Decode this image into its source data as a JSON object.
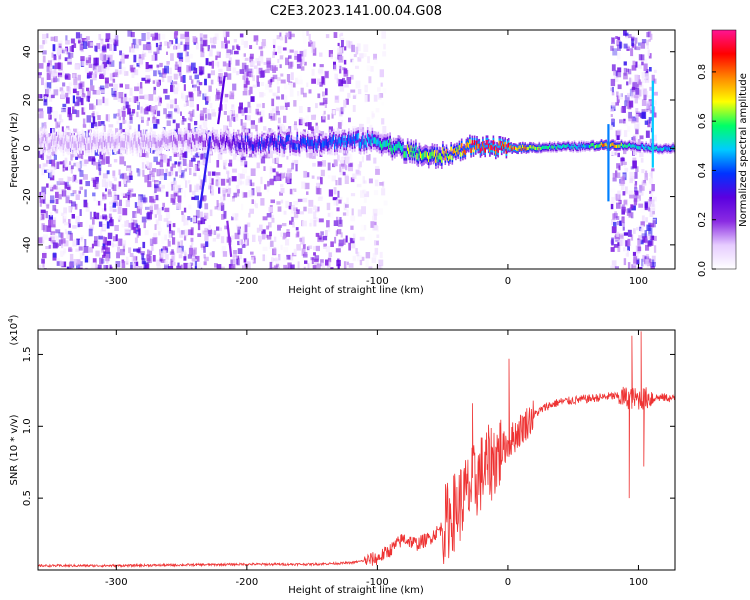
{
  "chart_data": [
    {
      "type": "heatmap",
      "title": "C2E3.2023.141.00.04.G08",
      "xlabel": "Height of straight line (km)",
      "ylabel": "Frequency (Hz)",
      "xlim": [
        -360,
        128
      ],
      "ylim": [
        -50,
        49
      ],
      "xticks": [
        -300,
        -200,
        -100,
        0,
        100
      ],
      "yticks": [
        -40,
        -20,
        0,
        20,
        40
      ],
      "grid": false,
      "colorbar": {
        "label": "Normalized spectral amplitude",
        "range": [
          0.0,
          0.97
        ],
        "ticks": [
          0.0,
          0.2,
          0.4,
          0.6,
          0.8
        ],
        "colormap": [
          "#ffffff",
          "#e6ccff",
          "#8a2be2",
          "#5a00e0",
          "#0033ff",
          "#00ccff",
          "#00ff66",
          "#ffff00",
          "#ff8800",
          "#ff0000",
          "#ff1493"
        ]
      },
      "ridge": [
        {
          "x": -280,
          "f": 2.5,
          "amp": 0.12
        },
        {
          "x": -230,
          "f": 3.0,
          "amp": 0.2
        },
        {
          "x": -200,
          "f": 2.0,
          "amp": 0.35
        },
        {
          "x": -150,
          "f": 2.5,
          "amp": 0.38
        },
        {
          "x": -120,
          "f": 3.0,
          "amp": 0.42
        },
        {
          "x": -100,
          "f": 3.0,
          "amp": 0.5
        },
        {
          "x": -80,
          "f": -1.0,
          "amp": 0.6
        },
        {
          "x": -60,
          "f": -3.5,
          "amp": 0.65
        },
        {
          "x": -45,
          "f": -2.5,
          "amp": 0.7
        },
        {
          "x": -30,
          "f": 1.0,
          "amp": 0.8
        },
        {
          "x": -15,
          "f": 0.5,
          "amp": 0.88
        },
        {
          "x": 0,
          "f": 0.0,
          "amp": 0.9
        },
        {
          "x": 30,
          "f": 0.5,
          "amp": 0.55
        },
        {
          "x": 60,
          "f": 0.8,
          "amp": 0.5
        },
        {
          "x": 75,
          "f": 1.5,
          "amp": 0.8
        },
        {
          "x": 95,
          "f": 1.0,
          "amp": 0.5
        },
        {
          "x": 115,
          "f": 0.0,
          "amp": 0.5
        }
      ]
    },
    {
      "type": "line",
      "xlabel": "Height of straight line (km)",
      "ylabel": "SNR (10 * v/v)",
      "yscale_label": "(x10",
      "yscale_exp": "4",
      "yscale_close": ")",
      "xlim": [
        -360,
        128
      ],
      "ylim": [
        0.0,
        1.67
      ],
      "xticks": [
        -300,
        -200,
        -100,
        0,
        100
      ],
      "yticks": [
        0.5,
        1.0,
        1.5
      ],
      "grid": false,
      "color": "#ee3333",
      "x": [
        -360,
        -300,
        -200,
        -150,
        -120,
        -100,
        -90,
        -80,
        -70,
        -60,
        -50,
        -40,
        -30,
        -20,
        -10,
        0,
        10,
        20,
        30,
        40,
        50,
        60,
        70,
        80,
        90,
        100,
        110,
        120,
        128
      ],
      "y": [
        0.03,
        0.03,
        0.04,
        0.04,
        0.05,
        0.08,
        0.14,
        0.22,
        0.18,
        0.22,
        0.3,
        0.42,
        0.55,
        0.68,
        0.78,
        0.88,
        0.98,
        1.08,
        1.14,
        1.17,
        1.18,
        1.19,
        1.2,
        1.21,
        1.2,
        1.19,
        1.2,
        1.2,
        1.19
      ],
      "spikes": [
        {
          "x": -27,
          "y": 1.16
        },
        {
          "x": 1,
          "y": 1.47
        },
        {
          "x": 93,
          "y": 0.5
        },
        {
          "x": 95,
          "y": 1.63
        },
        {
          "x": 102,
          "y": 1.66
        },
        {
          "x": 104,
          "y": 0.72
        }
      ]
    }
  ]
}
